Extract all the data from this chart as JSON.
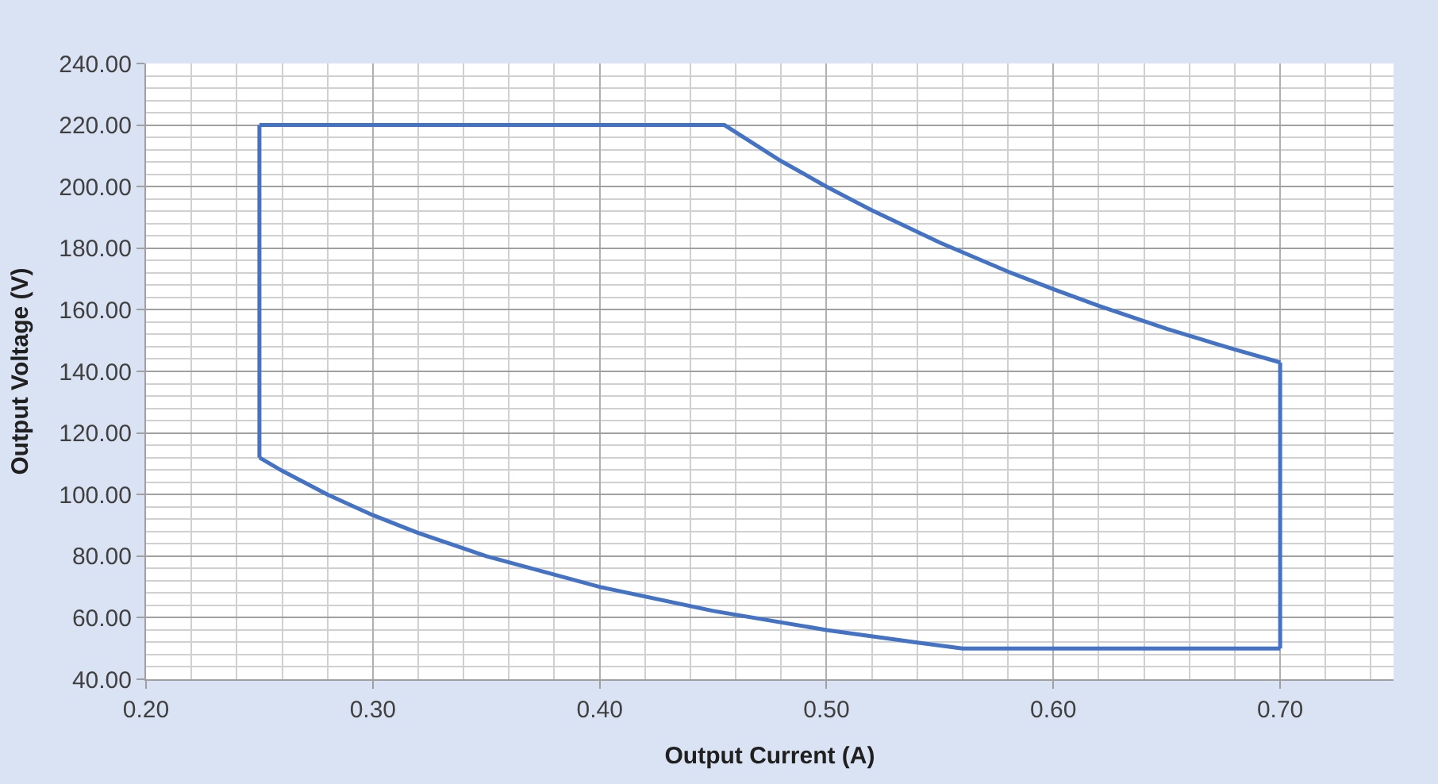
{
  "chart_data": {
    "type": "line",
    "xlabel": "Output Current (A)",
    "ylabel": "Output Voltage (V)",
    "series": [
      {
        "color": "#4472c4",
        "x": [
          0.25,
          0.455,
          0.48,
          0.5,
          0.52,
          0.55,
          0.58,
          0.6,
          0.62,
          0.65,
          0.68,
          0.7
        ],
        "values": [
          220,
          220,
          208.3,
          200,
          192.3,
          181.8,
          172.4,
          166.7,
          161.3,
          153.8,
          147.1,
          142.9
        ]
      },
      {
        "color": "#4472c4",
        "x": [
          0.25,
          0.26,
          0.28,
          0.3,
          0.32,
          0.35,
          0.4,
          0.45,
          0.5,
          0.54,
          0.56,
          0.7
        ],
        "values": [
          112,
          107.7,
          100,
          93.3,
          87.5,
          80,
          70,
          62.2,
          56,
          51.9,
          50,
          50
        ]
      },
      {
        "color": "#4472c4",
        "x": [
          0.25,
          0.25
        ],
        "values": [
          112,
          220
        ]
      },
      {
        "color": "#4472c4",
        "x": [
          0.7,
          0.7
        ],
        "values": [
          50,
          142.9
        ]
      }
    ],
    "xlim": [
      0.2,
      0.75
    ],
    "xticks": [
      {
        "value": 0.2,
        "label": "0.20"
      },
      {
        "value": 0.3,
        "label": "0.30"
      },
      {
        "value": 0.4,
        "label": "0.40"
      },
      {
        "value": 0.5,
        "label": "0.50"
      },
      {
        "value": 0.6,
        "label": "0.60"
      },
      {
        "value": 0.7,
        "label": "0.70"
      }
    ],
    "ylim": [
      40,
      240
    ],
    "yticks": [
      {
        "value": 40,
        "label": "40.00"
      },
      {
        "value": 60,
        "label": "60.00"
      },
      {
        "value": 80,
        "label": "80.00"
      },
      {
        "value": 100,
        "label": "100.00"
      },
      {
        "value": 120,
        "label": "120.00"
      },
      {
        "value": 140,
        "label": "140.00"
      },
      {
        "value": 160,
        "label": "160.00"
      },
      {
        "value": 180,
        "label": "180.00"
      },
      {
        "value": 200,
        "label": "200.00"
      },
      {
        "value": 220,
        "label": "220.00"
      },
      {
        "value": 240,
        "label": "240.00"
      }
    ],
    "grid": true,
    "marker": "none",
    "line_style": "solid"
  }
}
